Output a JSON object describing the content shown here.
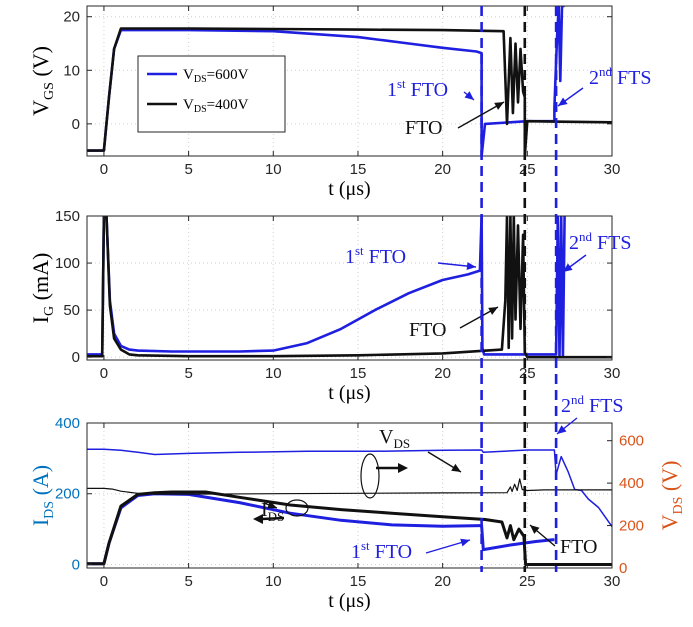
{
  "colors": {
    "v600": "#1f1fe0",
    "v400": "#111111",
    "right_axis": "#d95319",
    "left_axis": "#0072bd",
    "grid": "#cfcfcf",
    "marker_blue": "#1f1fe0",
    "marker_black": "#111111"
  },
  "chart_data": [
    {
      "type": "line",
      "id": "vgs",
      "ylabel_main": "V",
      "ylabel_sub": "GS",
      "ylabel_unit": " (V)",
      "xlabel": "t (μs)",
      "xlim": [
        -1,
        30
      ],
      "ylim": [
        -6,
        22
      ],
      "xticks": [
        0,
        5,
        10,
        15,
        20,
        25,
        30
      ],
      "yticks": [
        0,
        10,
        20
      ],
      "grid": true,
      "legend": {
        "placement": "top-left-inner",
        "entries": [
          {
            "main": "V",
            "sub": "DS",
            "rest": "=600V",
            "series": "v600"
          },
          {
            "main": "V",
            "sub": "DS",
            "rest": "=400V",
            "series": "v400"
          }
        ]
      },
      "series": [
        {
          "name": "V_DS=600V",
          "key": "v600",
          "x": [
            -1,
            0,
            0.3,
            0.6,
            1,
            5,
            10,
            15,
            18,
            20,
            22,
            22.3,
            22.3,
            22.5,
            25,
            26.6,
            26.6,
            26.75,
            26.85,
            26.95,
            27.05,
            27.2
          ],
          "y": [
            -5,
            -5,
            5,
            14,
            17.5,
            17.5,
            17.3,
            16.2,
            15,
            14.2,
            13.5,
            13.2,
            -6,
            0,
            0.5,
            0.5,
            3,
            16,
            22,
            8,
            22,
            22
          ]
        },
        {
          "name": "V_DS=400V",
          "key": "v400",
          "x": [
            -1,
            0,
            0.3,
            0.6,
            1,
            5,
            10,
            15,
            20,
            23.6,
            23.8,
            24,
            24.15,
            24.3,
            24.45,
            24.6,
            24.75,
            24.85,
            24.85,
            25,
            27,
            30
          ],
          "y": [
            -5,
            -5,
            5,
            14,
            17.8,
            17.8,
            17.7,
            17.6,
            17.5,
            17.3,
            0,
            16,
            2,
            15,
            4,
            14,
            6,
            5,
            -6,
            0.5,
            0.4,
            0.3
          ]
        }
      ],
      "annotations": [
        {
          "main": "1",
          "sup": "st",
          "rest": " FTO",
          "color": "v600"
        },
        {
          "main": "2",
          "sup": "nd",
          "rest": " FTS",
          "color": "v600"
        },
        {
          "main": "FTO",
          "color": "v400"
        }
      ]
    },
    {
      "type": "line",
      "id": "ig",
      "ylabel_main": "I",
      "ylabel_sub": "G",
      "ylabel_unit": " (mA)",
      "xlabel": "t (μs)",
      "xlim": [
        -1,
        30
      ],
      "ylim": [
        -3,
        150
      ],
      "xticks": [
        0,
        5,
        10,
        15,
        20,
        25,
        30
      ],
      "yticks": [
        0,
        50,
        100,
        150
      ],
      "grid": true,
      "series": [
        {
          "name": "V_DS=600V",
          "key": "v600",
          "x": [
            -1,
            -0.1,
            0,
            0.15,
            0.35,
            0.6,
            1,
            1.5,
            2,
            4,
            8,
            10,
            12,
            14,
            16,
            18,
            20,
            21.5,
            22.2,
            22.3,
            22.35,
            22.45,
            26.7,
            26.8,
            26.9,
            27,
            27.1,
            27.2
          ],
          "y": [
            3,
            3,
            150,
            150,
            60,
            25,
            12,
            8,
            7,
            6,
            6,
            7,
            15,
            30,
            50,
            68,
            82,
            88,
            92,
            150,
            10,
            3,
            3,
            150,
            0,
            150,
            0,
            150
          ]
        },
        {
          "name": "V_DS=400V",
          "key": "v400",
          "x": [
            -1,
            -0.1,
            0,
            0.15,
            0.35,
            0.6,
            1,
            1.5,
            2,
            5,
            10,
            15,
            20,
            23.5,
            23.7,
            23.8,
            23.9,
            24,
            24.1,
            24.2,
            24.3,
            24.45,
            24.6,
            24.75,
            24.85,
            25,
            30
          ],
          "y": [
            1,
            1,
            150,
            150,
            55,
            20,
            8,
            3,
            2,
            1,
            1,
            2,
            4,
            8,
            60,
            150,
            10,
            150,
            20,
            150,
            40,
            140,
            30,
            130,
            5,
            0,
            0
          ]
        }
      ],
      "annotations": [
        {
          "main": "1",
          "sup": "st",
          "rest": " FTO",
          "color": "v600"
        },
        {
          "main": "2",
          "sup": "nd",
          "rest": " FTS",
          "color": "v600"
        },
        {
          "main": "FTO",
          "color": "v400"
        }
      ]
    },
    {
      "type": "line",
      "id": "ids",
      "ylabel_main": "I",
      "ylabel_sub": "DS",
      "ylabel_unit": " (A)",
      "y2label_main": "V",
      "y2label_sub": "DS",
      "y2label_unit": " (V)",
      "xlabel": "t (μs)",
      "xlim": [
        -1,
        30
      ],
      "ylim": [
        -10,
        400
      ],
      "y2lim": [
        0,
        683.3
      ],
      "xticks": [
        0,
        5,
        10,
        15,
        20,
        25,
        30
      ],
      "yticks": [
        0,
        200,
        400
      ],
      "y2ticks": [
        0,
        200,
        400,
        600
      ],
      "grid": true,
      "series": [
        {
          "name": "I_DS 600V",
          "key": "v600",
          "axis": "left",
          "width": 3,
          "x": [
            -1,
            0,
            0.3,
            1,
            2,
            3,
            5,
            8,
            11,
            14,
            17,
            20,
            22.2,
            22.3,
            22.4,
            24,
            25.5,
            26.5,
            26.6
          ],
          "y": [
            2,
            2,
            60,
            160,
            195,
            200,
            198,
            175,
            145,
            125,
            112,
            108,
            110,
            110,
            42,
            55,
            65,
            70,
            70
          ]
        },
        {
          "name": "I_DS 400V",
          "key": "v400",
          "axis": "left",
          "width": 3,
          "x": [
            -1,
            0,
            0.3,
            1,
            2,
            3,
            4,
            6,
            8,
            11,
            14,
            17,
            20,
            22.5,
            23.5,
            23.8,
            24,
            24.2,
            24.5,
            24.8,
            24.9,
            25.3,
            27,
            30
          ],
          "y": [
            2,
            2,
            60,
            165,
            198,
            203,
            205,
            205,
            190,
            168,
            155,
            145,
            135,
            127,
            120,
            75,
            110,
            70,
            100,
            80,
            0,
            0,
            0,
            0
          ]
        },
        {
          "name": "V_DS 600V",
          "key": "v600",
          "axis": "right",
          "width": 1.5,
          "x": [
            -1,
            0,
            1,
            2,
            3,
            5,
            8,
            12,
            16,
            20,
            22.3,
            22.4,
            25,
            26.6,
            26.7,
            27,
            27.4,
            27.8,
            28.2,
            28.6,
            29.2,
            30
          ],
          "y": [
            560,
            560,
            555,
            545,
            535,
            540,
            545,
            550,
            550,
            555,
            556,
            545,
            556,
            556,
            440,
            525,
            455,
            370,
            365,
            325,
            285,
            195
          ]
        },
        {
          "name": "V_DS 400V",
          "key": "v400",
          "axis": "right",
          "width": 1.2,
          "x": [
            -1,
            0,
            0.5,
            1,
            2,
            3,
            5,
            10,
            15,
            20,
            23.8,
            24,
            24.1,
            24.25,
            24.4,
            24.55,
            24.7,
            25,
            26,
            30
          ],
          "y": [
            375,
            375,
            372,
            362,
            352,
            348,
            348,
            350,
            352,
            354,
            355,
            382,
            360,
            395,
            365,
            420,
            370,
            365,
            368,
            368
          ]
        }
      ],
      "annotations": [
        {
          "main": "V",
          "sub": "DS",
          "color": "v400"
        },
        {
          "main": "I",
          "sub": "DS",
          "color": "v400"
        },
        {
          "main": "1",
          "sup": "st",
          "rest": " FTO",
          "color": "v600"
        },
        {
          "main": "2",
          "sup": "nd",
          "rest": " FTS",
          "color": "v600"
        },
        {
          "main": "FTO",
          "color": "v400"
        }
      ]
    }
  ],
  "markers": [
    {
      "x": 22.3,
      "color": "marker_blue"
    },
    {
      "x": 24.85,
      "color": "marker_black"
    },
    {
      "x": 26.7,
      "color": "marker_blue"
    }
  ]
}
